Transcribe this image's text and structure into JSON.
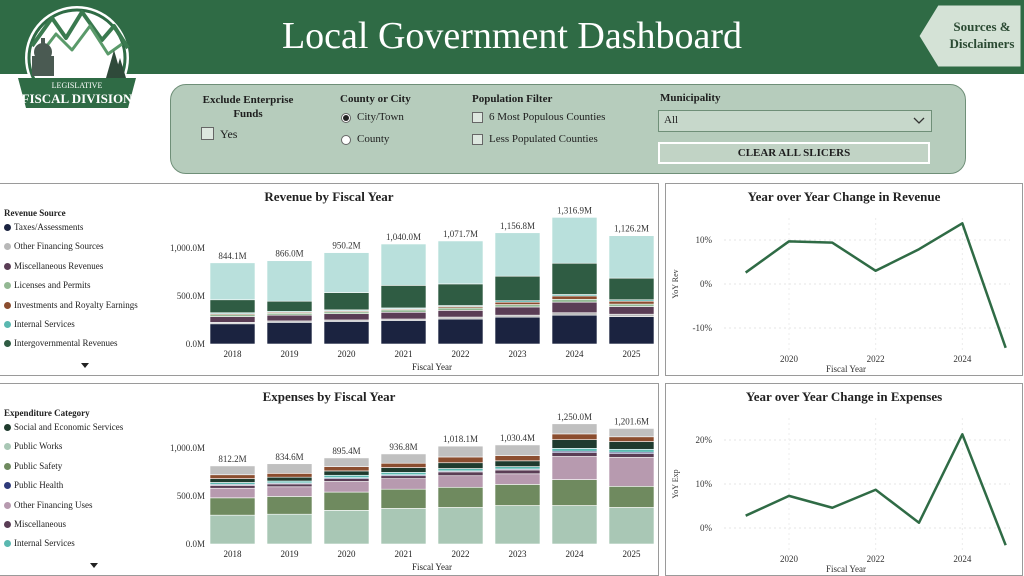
{
  "header": {
    "title": "Local Government Dashboard",
    "logo": {
      "text_top": "LEGISLATIVE",
      "text_main": "FISCAL DIVISION",
      "icon": "mountain-capitol-logo"
    },
    "sources_button": "Sources & Disclaimers",
    "colors": {
      "header_bg": "#2f6b45",
      "slicer_bg": "#b6ccbc"
    }
  },
  "slicers": {
    "enterprise": {
      "label": "Exclude Enterprise Funds",
      "option": "Yes",
      "checked": false
    },
    "county_city": {
      "label": "County or City",
      "options": [
        "City/Town",
        "County"
      ],
      "selected": "City/Town"
    },
    "population": {
      "label": "Population Filter",
      "options": [
        "6 Most Populous Counties",
        "Less Populated Counties"
      ]
    },
    "municipality": {
      "label": "Municipality",
      "value": "All",
      "icon": "chevron-down-icon"
    },
    "clear_button": "CLEAR ALL SLICERS"
  },
  "revenue_panel": {
    "legend_title": "Revenue Source",
    "legend": [
      {
        "name": "Taxes/Assessments",
        "color": "#1b2340"
      },
      {
        "name": "Other Financing Sources",
        "color": "#b8b8b8"
      },
      {
        "name": "Miscellaneous Revenues",
        "color": "#5a3d55"
      },
      {
        "name": "Licenses and Permits",
        "color": "#93b893"
      },
      {
        "name": "Investments and Royalty Earnings",
        "color": "#8b4d2f"
      },
      {
        "name": "Internal Services",
        "color": "#5ab8b0"
      },
      {
        "name": "Intergovernmental Revenues",
        "color": "#2f5c43"
      }
    ],
    "chart_data": {
      "type": "bar",
      "title": "Revenue by Fiscal Year",
      "xlabel": "Fiscal Year",
      "ylabel": "",
      "categories": [
        "2018",
        "2019",
        "2020",
        "2021",
        "2022",
        "2023",
        "2024",
        "2025"
      ],
      "totals": [
        "844.1M",
        "866.0M",
        "950.2M",
        "1,040.0M",
        "1,071.7M",
        "1,156.8M",
        "1,316.9M",
        "1,126.2M"
      ],
      "ylim": [
        0,
        1300
      ],
      "yticks": [
        "0.0M",
        "500.0M",
        "1,000.0M"
      ],
      "series": [
        {
          "name": "Taxes/Assessments",
          "color": "#1b2340",
          "values": [
            210,
            225,
            235,
            245,
            260,
            280,
            300,
            285
          ]
        },
        {
          "name": "Other Financing Sources",
          "color": "#b8b8b8",
          "values": [
            15,
            15,
            15,
            15,
            20,
            20,
            25,
            25
          ]
        },
        {
          "name": "Miscellaneous Revenues",
          "color": "#5a3d55",
          "values": [
            60,
            60,
            65,
            70,
            70,
            85,
            110,
            80
          ]
        },
        {
          "name": "Licenses and Permits",
          "color": "#93b893",
          "values": [
            20,
            20,
            20,
            25,
            25,
            25,
            30,
            25
          ]
        },
        {
          "name": "Investments and Royalty Earnings",
          "color": "#8b4d2f",
          "values": [
            10,
            10,
            10,
            10,
            15,
            25,
            35,
            30
          ]
        },
        {
          "name": "Internal Services",
          "color": "#5ab8b0",
          "values": [
            10,
            10,
            10,
            10,
            10,
            15,
            15,
            15
          ]
        },
        {
          "name": "Intergovernmental Revenues",
          "color": "#2f5c43",
          "values": [
            135,
            105,
            180,
            235,
            225,
            255,
            325,
            225
          ]
        },
        {
          "name": "",
          "color": "#b9e0dc",
          "values": [
            384.1,
            421,
            415.2,
            430,
            446.7,
            451.8,
            476.9,
            441.2
          ]
        }
      ]
    }
  },
  "revenue_yoy": {
    "chart_data": {
      "type": "line",
      "title": "Year over Year Change in Revenue",
      "xlabel": "Fiscal Year",
      "ylabel": "YoY Rev",
      "x": [
        2019,
        2020,
        2021,
        2022,
        2023,
        2024,
        2025
      ],
      "xticks": [
        "2020",
        "2022",
        "2024"
      ],
      "yticks": [
        "-10%",
        "0%",
        "10%"
      ],
      "ylim": [
        -15,
        15
      ],
      "series": [
        {
          "name": "",
          "color": "#2f6b45",
          "values": [
            2.6,
            9.7,
            9.4,
            3.0,
            7.9,
            13.8,
            -14.5
          ]
        }
      ]
    }
  },
  "expenses_panel": {
    "legend_title": "Expenditure Category",
    "legend": [
      {
        "name": "Social and Economic Services",
        "color": "#1f3b2e"
      },
      {
        "name": "Public Works",
        "color": "#a9c7b5"
      },
      {
        "name": "Public Safety",
        "color": "#6f8a5f"
      },
      {
        "name": "Public Health",
        "color": "#2e3a7a"
      },
      {
        "name": "Other Financing Uses",
        "color": "#b79aaf"
      },
      {
        "name": "Miscellaneous",
        "color": "#5a3d55"
      },
      {
        "name": "Internal Services",
        "color": "#5ab8b0"
      }
    ],
    "chart_data": {
      "type": "bar",
      "title": "Expenses by Fiscal Year",
      "xlabel": "Fiscal Year",
      "ylabel": "",
      "categories": [
        "2018",
        "2019",
        "2020",
        "2021",
        "2022",
        "2023",
        "2024",
        "2025"
      ],
      "totals": [
        "812.2M",
        "834.6M",
        "895.4M",
        "936.8M",
        "1,018.1M",
        "1,030.4M",
        "1,250.0M",
        "1,201.6M"
      ],
      "ylim": [
        0,
        1300
      ],
      "yticks": [
        "0.0M",
        "500.0M",
        "1,000.0M"
      ],
      "series": [
        {
          "name": "Public Works",
          "color": "#a9c7b5",
          "values": [
            300,
            310,
            350,
            370,
            380,
            400,
            400,
            380
          ]
        },
        {
          "name": "Public Safety",
          "color": "#6f8a5f",
          "values": [
            180,
            185,
            190,
            200,
            210,
            220,
            270,
            220
          ]
        },
        {
          "name": "Other Financing Uses",
          "color": "#b79aaf",
          "values": [
            100,
            100,
            110,
            110,
            120,
            110,
            240,
            300
          ]
        },
        {
          "name": "Miscellaneous",
          "color": "#5a3d55",
          "values": [
            30,
            30,
            30,
            30,
            40,
            40,
            40,
            40
          ]
        },
        {
          "name": "Public Health",
          "color": "#2e3a7a",
          "values": [
            10,
            10,
            10,
            10,
            10,
            10,
            15,
            15
          ]
        },
        {
          "name": "Internal Services",
          "color": "#5ab8b0",
          "values": [
            20,
            20,
            25,
            25,
            25,
            25,
            30,
            30
          ]
        },
        {
          "name": "Social and Economic Services",
          "color": "#1f3b2e",
          "values": [
            40,
            40,
            45,
            50,
            60,
            60,
            90,
            80
          ]
        },
        {
          "name": "",
          "color": "#8b4d2f",
          "values": [
            40,
            40,
            45,
            45,
            60,
            55,
            60,
            50
          ]
        },
        {
          "name": "",
          "color": "#c0c0c0",
          "values": [
            92.2,
            99.6,
            90.4,
            96.8,
            113.1,
            110.4,
            105,
            86.6
          ]
        }
      ]
    }
  },
  "expenses_yoy": {
    "chart_data": {
      "type": "line",
      "title": "Year over Year Change in Expenses",
      "xlabel": "Fiscal Year",
      "ylabel": "YoY Exp",
      "x": [
        2019,
        2020,
        2021,
        2022,
        2023,
        2024,
        2025
      ],
      "xticks": [
        "2020",
        "2022",
        "2024"
      ],
      "yticks": [
        "0%",
        "10%",
        "20%"
      ],
      "ylim": [
        -5,
        25
      ],
      "series": [
        {
          "name": "",
          "color": "#2f6b45",
          "values": [
            2.8,
            7.3,
            4.6,
            8.7,
            1.2,
            21.3,
            -3.9
          ]
        }
      ]
    }
  }
}
